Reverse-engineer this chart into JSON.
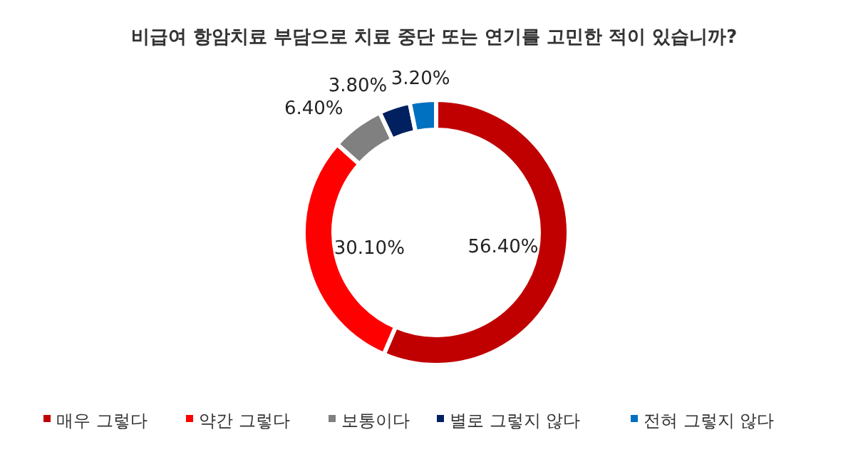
{
  "chart_data": {
    "type": "donut",
    "title": "비급여 항암치료 부담으로 치료 중단 또는 연기를 고민한 적이 있습니까?",
    "categories": [
      "매우 그렇다",
      "약간 그렇다",
      "보통이다",
      "별로 그렇지 않다",
      "전혀 그렇지 않다"
    ],
    "values": [
      56.4,
      30.1,
      6.4,
      3.8,
      3.2
    ],
    "value_labels": [
      "56.40%",
      "30.10%",
      "6.40%",
      "3.80%",
      "3.20%"
    ],
    "colors": [
      "#c00000",
      "#ff0000",
      "#808080",
      "#002060",
      "#0070c0"
    ],
    "legend": "bottom"
  }
}
